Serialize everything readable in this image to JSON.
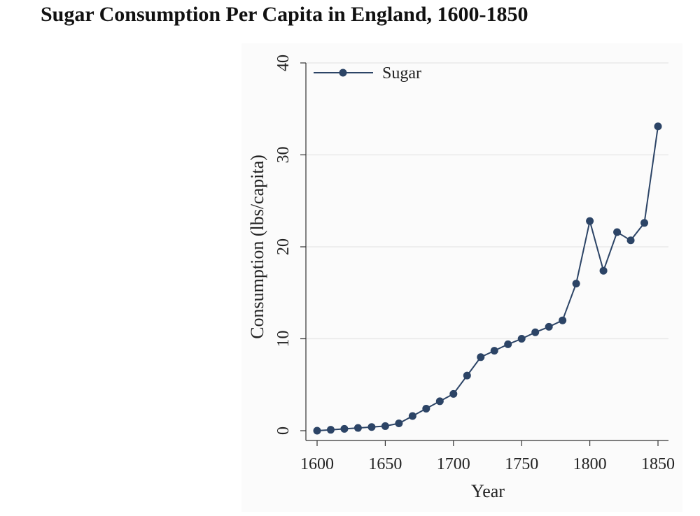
{
  "title": "Sugar Consumption Per Capita in England, 1600-1850",
  "chart_data": {
    "type": "line",
    "title": "Sugar Consumption Per Capita in England, 1600-1850",
    "xlabel": "Year",
    "ylabel": "Consumption (lbs/capita)",
    "xlim": [
      1600,
      1850
    ],
    "ylim": [
      0,
      40
    ],
    "x_ticks": [
      1600,
      1650,
      1700,
      1750,
      1800,
      1850
    ],
    "y_ticks": [
      0,
      10,
      20,
      30,
      40
    ],
    "grid": true,
    "legend": "top-left",
    "series": [
      {
        "name": "Sugar",
        "color": "#2c4466",
        "x": [
          1600,
          1610,
          1620,
          1630,
          1640,
          1650,
          1660,
          1670,
          1680,
          1690,
          1700,
          1710,
          1720,
          1730,
          1740,
          1750,
          1760,
          1770,
          1780,
          1790,
          1800,
          1810,
          1820,
          1830,
          1840,
          1850
        ],
        "values": [
          0.0,
          0.1,
          0.2,
          0.3,
          0.4,
          0.5,
          0.8,
          1.6,
          2.4,
          3.2,
          4.0,
          6.0,
          8.0,
          8.7,
          9.4,
          10.0,
          10.7,
          11.3,
          12.0,
          16.0,
          22.8,
          17.4,
          21.6,
          20.7,
          22.6,
          33.1
        ]
      }
    ]
  }
}
